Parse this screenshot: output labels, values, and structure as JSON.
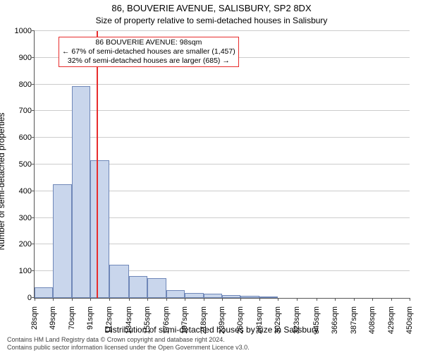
{
  "chart": {
    "type": "histogram",
    "title": "86, BOUVERIE AVENUE, SALISBURY, SP2 8DX",
    "subtitle": "Size of property relative to semi-detached houses in Salisbury",
    "y_axis_title": "Number of semi-detached properties",
    "x_axis_title": "Distribution of semi-detached houses by size in Salisbury",
    "ylim": [
      0,
      1000
    ],
    "ytick_step": 100,
    "yticks": [
      0,
      100,
      200,
      300,
      400,
      500,
      600,
      700,
      800,
      900,
      1000
    ],
    "xticks_sqm": [
      28,
      49,
      70,
      91,
      112,
      134,
      155,
      176,
      197,
      218,
      239,
      260,
      281,
      302,
      323,
      345,
      366,
      387,
      408,
      429,
      450
    ],
    "x_min": 28,
    "x_max": 450,
    "bar_fill": "#c9d6ec",
    "bar_stroke": "#6f87b8",
    "grid_color": "#cccccc",
    "vline_color": "#e82c2c",
    "vline_x": 98,
    "annotation": {
      "line1": "86 BOUVERIE AVENUE: 98sqm",
      "line2": "← 67% of semi-detached houses are smaller (1,457)",
      "line3": "32% of semi-detached houses are larger (685) →"
    },
    "bars": [
      {
        "x0": 28,
        "x1": 49,
        "value": 40
      },
      {
        "x0": 49,
        "x1": 70,
        "value": 425
      },
      {
        "x0": 70,
        "x1": 91,
        "value": 795
      },
      {
        "x0": 91,
        "x1": 112,
        "value": 515
      },
      {
        "x0": 112,
        "x1": 134,
        "value": 125
      },
      {
        "x0": 134,
        "x1": 155,
        "value": 82
      },
      {
        "x0": 155,
        "x1": 176,
        "value": 75
      },
      {
        "x0": 176,
        "x1": 197,
        "value": 30
      },
      {
        "x0": 197,
        "x1": 218,
        "value": 18
      },
      {
        "x0": 218,
        "x1": 239,
        "value": 16
      },
      {
        "x0": 239,
        "x1": 260,
        "value": 10
      },
      {
        "x0": 260,
        "x1": 281,
        "value": 8
      },
      {
        "x0": 281,
        "x1": 302,
        "value": 6
      },
      {
        "x0": 302,
        "x1": 450,
        "value": 0
      }
    ]
  },
  "footer": {
    "line1": "Contains HM Land Registry data © Crown copyright and database right 2024.",
    "line2": "Contains public sector information licensed under the Open Government Licence v3.0."
  }
}
